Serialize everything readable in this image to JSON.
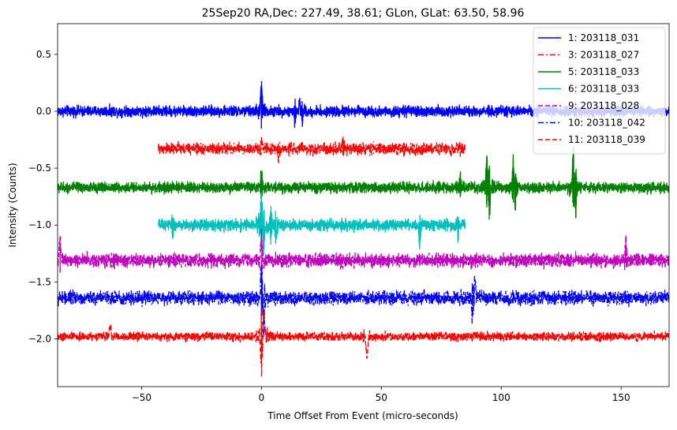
{
  "chart_data": {
    "type": "line",
    "title": "25Sep20 RA,Dec:  227.49,  38.61; GLon, GLat:   63.50,  58.96",
    "xlabel": "Time Offset From Event (micro-seconds)",
    "ylabel": "Intensity (Counts)",
    "xlim": [
      -85,
      170
    ],
    "ylim": [
      -2.42,
      0.77
    ],
    "xticks": [
      -50,
      0,
      50,
      100,
      150
    ],
    "xtick_labels": [
      "−50",
      "0",
      "50",
      "100",
      "150"
    ],
    "yticks": [
      0.5,
      0.0,
      -0.5,
      -1.0,
      -1.5,
      -2.0
    ],
    "ytick_labels": [
      "0.5",
      "0.0",
      "−0.5",
      "−1.0",
      "−1.5",
      "−2.0"
    ],
    "legend_position": "top-right",
    "series": [
      {
        "name": "1: 203118_031",
        "label": "  1: 203118_031",
        "color": "#0000ff",
        "style": "solid",
        "offset": 0.0,
        "x_start": -85,
        "x_end": 170,
        "noise": 0.028,
        "spikes": [
          {
            "x": 0,
            "amp": 0.27
          },
          {
            "x": 14,
            "amp": -0.12
          },
          {
            "x": 16,
            "amp": 0.1
          },
          {
            "x": 17,
            "amp": -0.1
          }
        ]
      },
      {
        "name": "3: 203118_027",
        "label": "  3: 203118_027",
        "color": "#ff0000",
        "style": "dashdot",
        "offset": -0.33,
        "x_start": -43,
        "x_end": 85,
        "noise": 0.03,
        "spikes": [
          {
            "x": 0,
            "amp": 0.1
          },
          {
            "x": 7,
            "amp": -0.12
          },
          {
            "x": 34,
            "amp": 0.08
          }
        ]
      },
      {
        "name": "5: 203118_033",
        "label": "  5: 203118_033",
        "color": "#008000",
        "style": "solid",
        "offset": -0.67,
        "x_start": -85,
        "x_end": 170,
        "noise": 0.028,
        "spikes": [
          {
            "x": 0,
            "amp": 0.15
          },
          {
            "x": 83,
            "amp": 0.12
          },
          {
            "x": 94,
            "amp": 0.32
          },
          {
            "x": 95,
            "amp": -0.26
          },
          {
            "x": 105,
            "amp": 0.27
          },
          {
            "x": 106,
            "amp": -0.22
          },
          {
            "x": 130,
            "amp": 0.35
          },
          {
            "x": 131,
            "amp": -0.27
          }
        ]
      },
      {
        "name": "6: 203118_033",
        "label": "  6: 203118_033",
        "color": "#00bfbf",
        "style": "solid",
        "offset": -1.0,
        "x_start": -43,
        "x_end": 85,
        "noise": 0.03,
        "spikes": [
          {
            "x": 0,
            "amp": 0.3
          },
          {
            "x": 1,
            "amp": -0.25
          },
          {
            "x": 4,
            "amp": 0.2
          },
          {
            "x": 6,
            "amp": -0.15
          },
          {
            "x": 66,
            "amp": -0.18
          },
          {
            "x": 82,
            "amp": -0.12
          },
          {
            "x": -37,
            "amp": -0.12
          }
        ]
      },
      {
        "name": "9: 203118_028",
        "label": "  9: 203118_028",
        "color": "#bf00bf",
        "style": "dashed",
        "offset": -1.31,
        "x_start": -85,
        "x_end": 170,
        "noise": 0.035,
        "spikes": [
          {
            "x": -84,
            "amp": 0.2
          },
          {
            "x": 0,
            "amp": 0.25
          },
          {
            "x": 152,
            "amp": 0.18
          }
        ]
      },
      {
        "name": "10: 203118_042",
        "label": "10: 203118_042",
        "color": "#0000ff",
        "style": "dashdot",
        "offset": -1.64,
        "x_start": -85,
        "x_end": 170,
        "noise": 0.035,
        "spikes": [
          {
            "x": 0,
            "amp": 0.3
          },
          {
            "x": 1,
            "amp": -0.3
          },
          {
            "x": 88,
            "amp": -0.22
          },
          {
            "x": 89,
            "amp": 0.18
          }
        ]
      },
      {
        "name": "11: 203118_039",
        "label": "11: 203118_039",
        "color": "#ff0000",
        "style": "dashed",
        "offset": -1.98,
        "x_start": -85,
        "x_end": 170,
        "noise": 0.022,
        "spikes": [
          {
            "x": 0,
            "amp": -0.36
          },
          {
            "x": 1,
            "amp": 0.22
          },
          {
            "x": -63,
            "amp": 0.1
          },
          {
            "x": 44,
            "amp": -0.2
          }
        ]
      }
    ]
  }
}
